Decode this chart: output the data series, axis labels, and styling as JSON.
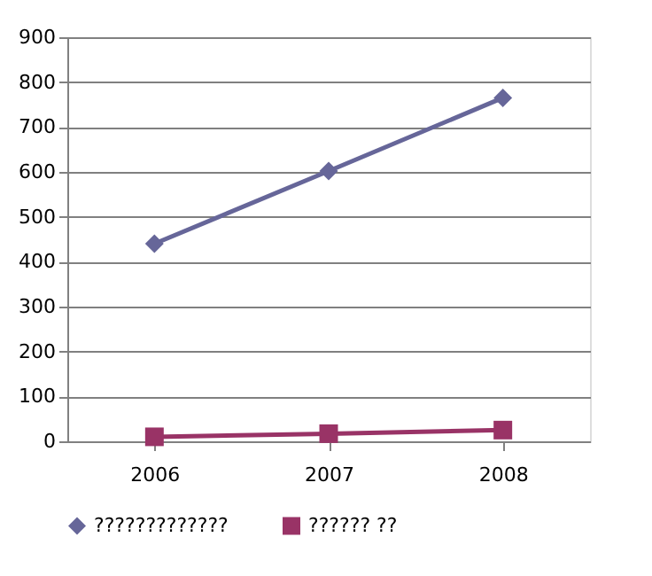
{
  "chart_data": {
    "type": "line",
    "categories": [
      "2006",
      "2007",
      "2008"
    ],
    "series": [
      {
        "name": "?????????????",
        "color": "#666699",
        "marker": "diamond",
        "values": [
          440,
          602,
          765
        ]
      },
      {
        "name": "?????? ??",
        "color": "#993366",
        "marker": "square",
        "values": [
          10,
          17,
          25
        ]
      }
    ],
    "ylim": [
      0,
      900
    ],
    "yticks": [
      0,
      100,
      200,
      300,
      400,
      500,
      600,
      700,
      800,
      900
    ],
    "grid": "y",
    "legend": "bottom",
    "line_style": "solid"
  }
}
